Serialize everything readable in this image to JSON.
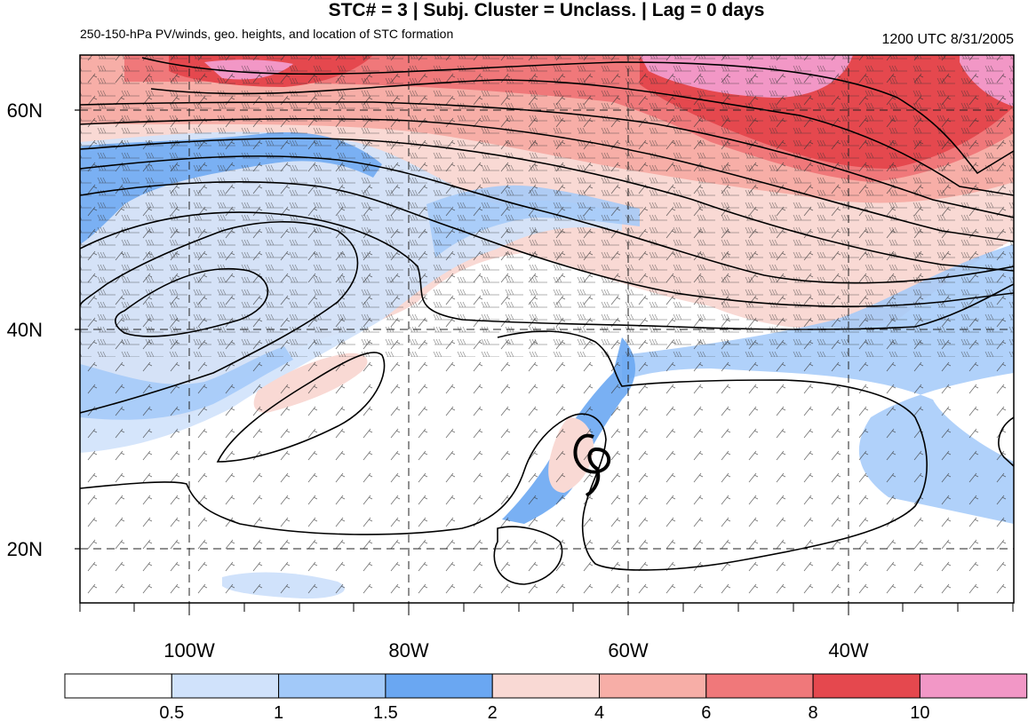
{
  "header": {
    "title": "STC# = 3 | Subj. Cluster = Unclass. | Lag = 0 days",
    "subtitle": "250-150-hPa PV/winds, geo. heights, and location of STC formation",
    "datetime": "1200 UTC  8/31/2005"
  },
  "map": {
    "lon_range": [
      -110,
      -25
    ],
    "lat_range": [
      15,
      65
    ],
    "lat_ticks": [
      {
        "value": 20,
        "label": "20N"
      },
      {
        "value": 40,
        "label": "40N"
      },
      {
        "value": 60,
        "label": "60N"
      }
    ],
    "lon_ticks": [
      {
        "value": -100,
        "label": "100W"
      },
      {
        "value": -80,
        "label": "80W"
      },
      {
        "value": -60,
        "label": "60W"
      },
      {
        "value": -40,
        "label": "40W"
      }
    ],
    "grid_lines": "dashed",
    "storm_symbol": {
      "lon": -64,
      "lat": 28,
      "label": "STC formation location"
    }
  },
  "colorbar": {
    "levels": [
      "0.5",
      "1",
      "1.5",
      "2",
      "4",
      "6",
      "8",
      "10"
    ],
    "colors": [
      "#ffffff",
      "#d0e2fb",
      "#a2c9f9",
      "#6aa7f2",
      "#f9d9d4",
      "#f7aea7",
      "#f0787a",
      "#e5484e",
      "#f297c6"
    ]
  }
}
